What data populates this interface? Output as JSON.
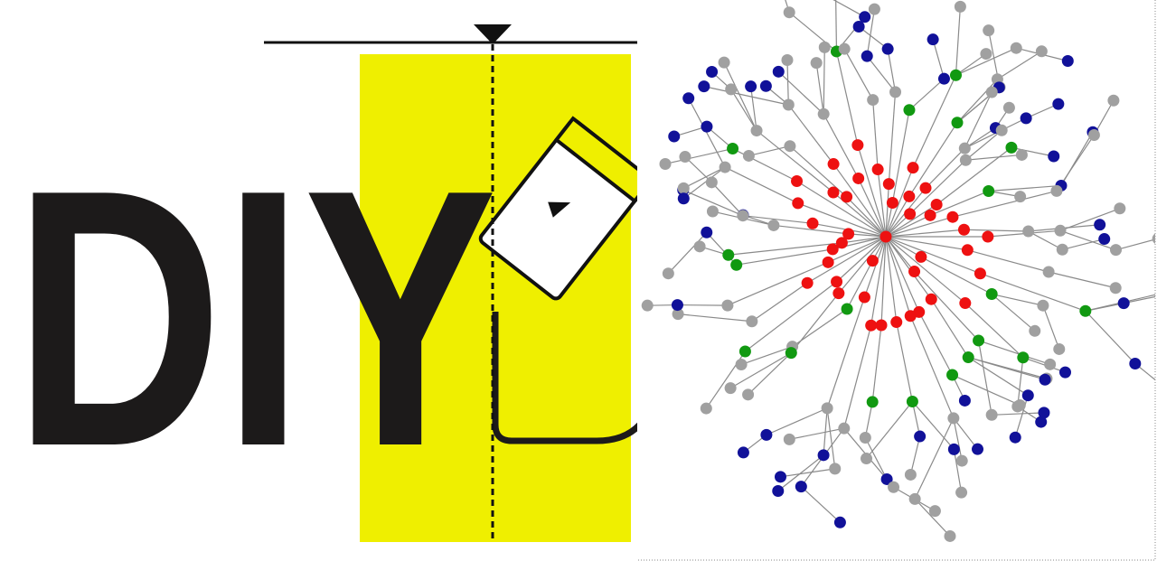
{
  "logo": {
    "text": "DIY"
  }
}
